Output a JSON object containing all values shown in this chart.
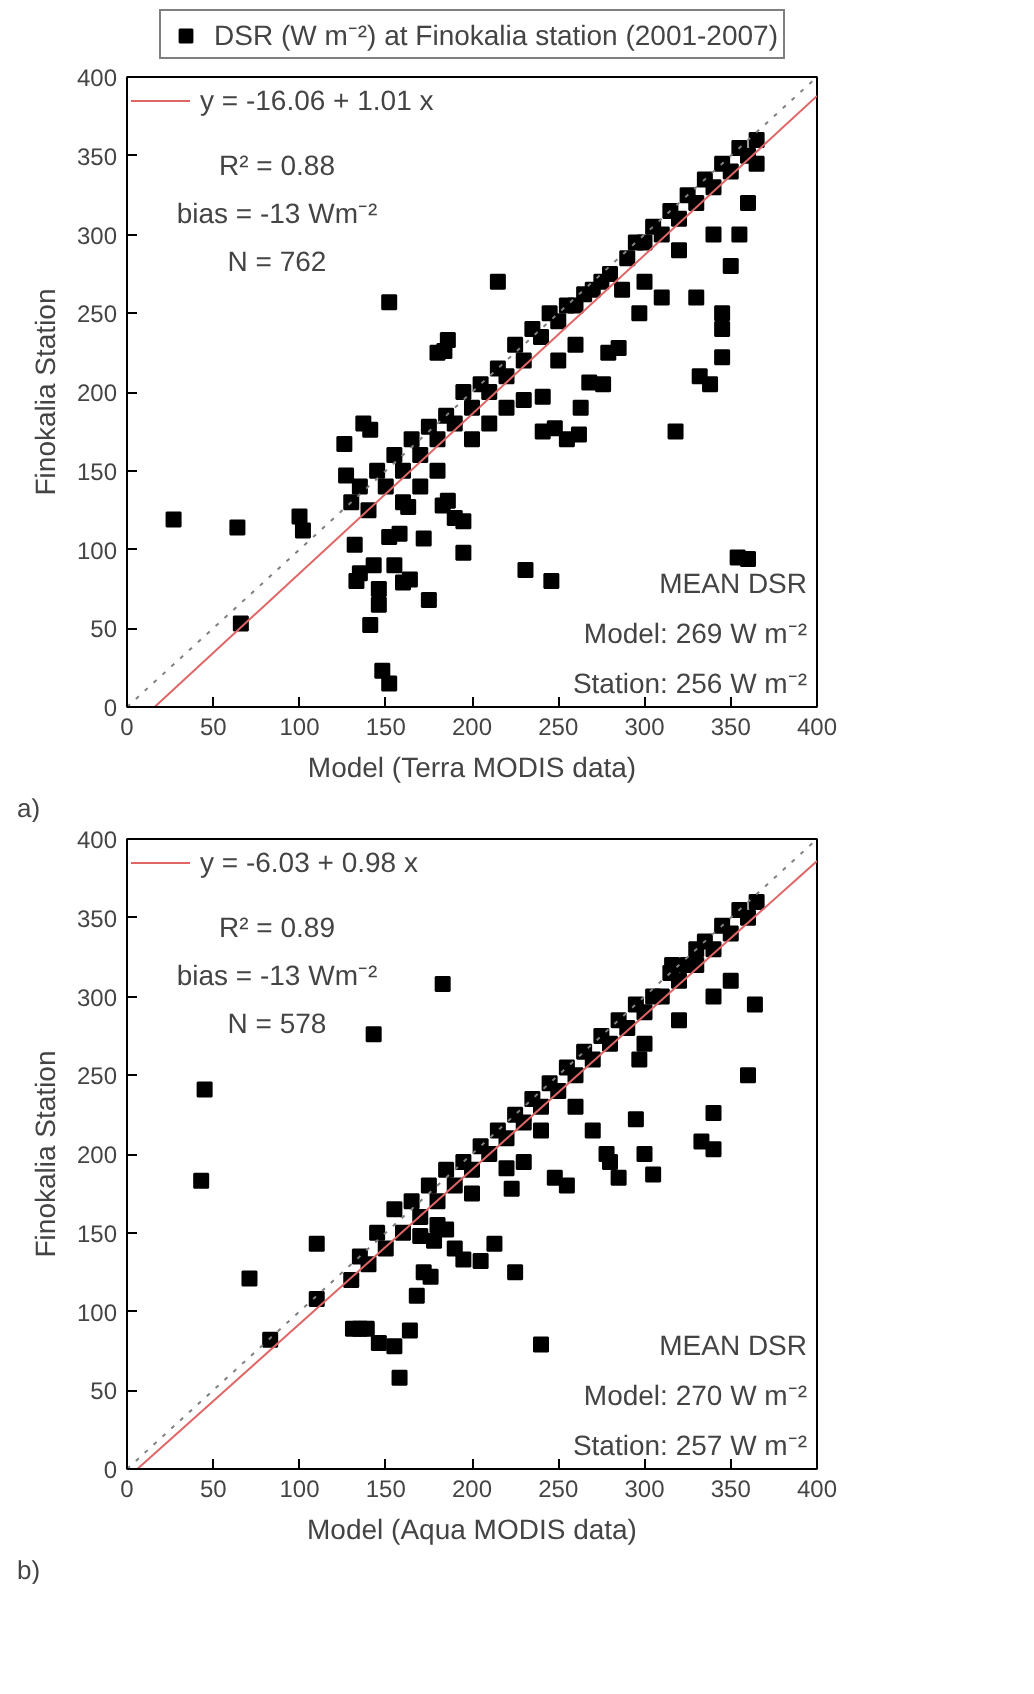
{
  "chart_data": [
    {
      "type": "scatter",
      "xlabel": "Model (Terra MODIS data)",
      "ylabel": "Finokalia Station",
      "xlim": [
        0,
        400
      ],
      "ylim": [
        0,
        400
      ],
      "xticks": [
        0,
        50,
        100,
        150,
        200,
        250,
        300,
        350,
        400
      ],
      "yticks": [
        0,
        50,
        100,
        150,
        200,
        250,
        300,
        350,
        400
      ],
      "grid": false,
      "legend": "top left",
      "annotations": [
        "R² = 0.88",
        "bias = -13 Wm⁻²",
        "N = 762",
        "MEAN DSR",
        "Model: 269 W m⁻²",
        "Station: 256 W m⁻²",
        "a)"
      ],
      "series": [
        {
          "name": "DSR (W m⁻²) at Finokalia station (2001-2007)",
          "marker": "square",
          "color": "#000000",
          "x": [
            27,
            64,
            66,
            100,
            102,
            132,
            137,
            141,
            127,
            130,
            126,
            135,
            133,
            146,
            146,
            143,
            141,
            148,
            152,
            152,
            158,
            160,
            155,
            164,
            163,
            175,
            172,
            195,
            195,
            183,
            186,
            190,
            180,
            186,
            184,
            152,
            215,
            231,
            246,
            241,
            248,
            241,
            255,
            262,
            268,
            276,
            263,
            279,
            297,
            318,
            332,
            345,
            354,
            360,
            338,
            345,
            287,
            285,
            140,
            150,
            160,
            170,
            180,
            190,
            200,
            210,
            220,
            230,
            240,
            250,
            260,
            270,
            280,
            290,
            300,
            310,
            320,
            330,
            340,
            350,
            360,
            365,
            355,
            345,
            335,
            325,
            315,
            305,
            295,
            275,
            265,
            255,
            245,
            235,
            225,
            215,
            205,
            195,
            185,
            175,
            165,
            155,
            145,
            135,
            300,
            320,
            340,
            350,
            360,
            330,
            310,
            220,
            230,
            200,
            210,
            180,
            170,
            160,
            250,
            260,
            345,
            355,
            365
          ],
          "values": [
            119,
            114,
            53,
            121,
            112,
            103,
            180,
            176,
            147,
            130,
            167,
            85,
            80,
            65,
            75,
            90,
            52,
            23,
            15,
            108,
            110,
            79,
            90,
            81,
            127,
            68,
            107,
            118,
            98,
            128,
            131,
            120,
            225,
            233,
            226,
            257,
            270,
            87,
            80,
            175,
            177,
            197,
            170,
            173,
            206,
            205,
            190,
            225,
            250,
            175,
            210,
            222,
            95,
            94,
            205,
            250,
            265,
            228,
            125,
            140,
            150,
            160,
            170,
            180,
            190,
            200,
            210,
            220,
            235,
            245,
            255,
            265,
            275,
            285,
            295,
            300,
            310,
            320,
            330,
            340,
            350,
            360,
            355,
            345,
            335,
            325,
            315,
            305,
            295,
            270,
            262,
            255,
            250,
            240,
            230,
            215,
            205,
            200,
            185,
            178,
            170,
            160,
            150,
            140,
            270,
            290,
            300,
            280,
            320,
            260,
            260,
            190,
            195,
            170,
            180,
            150,
            140,
            130,
            220,
            230,
            240,
            300,
            345
          ]
        },
        {
          "type": "line",
          "name": "y = -16.06 + 1.01 x",
          "color": "#e06666",
          "line_style": "solid",
          "x": [
            16,
            400
          ],
          "values": [
            0,
            388
          ]
        },
        {
          "type": "line",
          "color": "#808080",
          "line_style": "dotted",
          "x": [
            0,
            400
          ],
          "values": [
            0,
            400
          ]
        }
      ]
    },
    {
      "type": "scatter",
      "xlabel": "Model (Aqua MODIS data)",
      "ylabel": "Finokalia Station",
      "xlim": [
        0,
        400
      ],
      "ylim": [
        0,
        400
      ],
      "xticks": [
        0,
        50,
        100,
        150,
        200,
        250,
        300,
        350,
        400
      ],
      "yticks": [
        0,
        50,
        100,
        150,
        200,
        250,
        300,
        350,
        400
      ],
      "grid": false,
      "legend": "top left",
      "annotations": [
        "R² = 0.89",
        "bias = -13 Wm⁻²",
        "N = 578",
        "MEAN DSR",
        "Model: 270 W m⁻²",
        "Station: 257 W m⁻²",
        "b)"
      ],
      "series": [
        {
          "marker": "square",
          "color": "#000000",
          "x": [
            43,
            45,
            71,
            83,
            110,
            110,
            143,
            183,
            131,
            135,
            139,
            146,
            155,
            158,
            164,
            168,
            172,
            176,
            178,
            170,
            185,
            190,
            195,
            205,
            213,
            225,
            223,
            220,
            240,
            280,
            285,
            300,
            305,
            295,
            297,
            278,
            333,
            340,
            340,
            360,
            364,
            270,
            230,
            248,
            255,
            316,
            330,
            130,
            140,
            150,
            160,
            170,
            180,
            190,
            200,
            210,
            220,
            230,
            240,
            250,
            260,
            270,
            280,
            290,
            300,
            310,
            320,
            330,
            340,
            350,
            360,
            365,
            355,
            345,
            335,
            325,
            315,
            305,
            295,
            285,
            275,
            265,
            255,
            245,
            235,
            225,
            215,
            205,
            195,
            185,
            175,
            165,
            155,
            145,
            135,
            300,
            320,
            340,
            350,
            260,
            240,
            200,
            180
          ],
          "values": [
            183,
            241,
            121,
            82,
            143,
            108,
            276,
            308,
            89,
            89,
            89,
            80,
            78,
            58,
            88,
            110,
            125,
            122,
            145,
            148,
            152,
            140,
            133,
            132,
            143,
            125,
            178,
            191,
            79,
            195,
            185,
            200,
            187,
            222,
            260,
            200,
            208,
            203,
            226,
            250,
            295,
            215,
            195,
            185,
            180,
            320,
            330,
            120,
            130,
            140,
            150,
            160,
            170,
            180,
            190,
            200,
            210,
            220,
            230,
            240,
            250,
            260,
            270,
            280,
            290,
            300,
            310,
            320,
            330,
            340,
            350,
            360,
            355,
            345,
            335,
            320,
            315,
            300,
            295,
            285,
            275,
            265,
            255,
            245,
            235,
            225,
            215,
            205,
            195,
            190,
            180,
            170,
            165,
            150,
            135,
            270,
            285,
            300,
            310,
            230,
            215,
            175,
            155
          ]
        },
        {
          "type": "line",
          "name": "y = -6.03 + 0.98 x",
          "color": "#e06666",
          "line_style": "solid",
          "x": [
            6,
            400
          ],
          "values": [
            0,
            386
          ]
        },
        {
          "type": "line",
          "color": "#808080",
          "line_style": "dotted",
          "x": [
            0,
            400
          ],
          "values": [
            0,
            400
          ]
        }
      ]
    }
  ]
}
